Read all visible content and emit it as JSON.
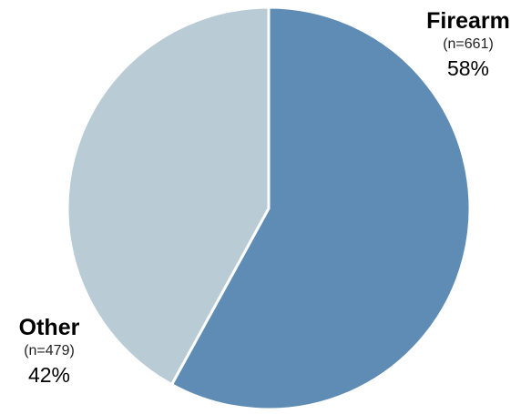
{
  "chart_data": {
    "type": "pie",
    "title": "",
    "slices": [
      {
        "name": "Firearm",
        "count_label": "(n=661)",
        "count": 661,
        "percent": 58,
        "percent_label": "58%",
        "color": "#5f8cb4"
      },
      {
        "name": "Other",
        "count_label": "(n=479)",
        "count": 479,
        "percent": 42,
        "percent_label": "42%",
        "color": "#b9cbd5"
      }
    ],
    "start_angle_deg": 0,
    "direction": "clockwise",
    "edge_color": "#ffffff"
  }
}
